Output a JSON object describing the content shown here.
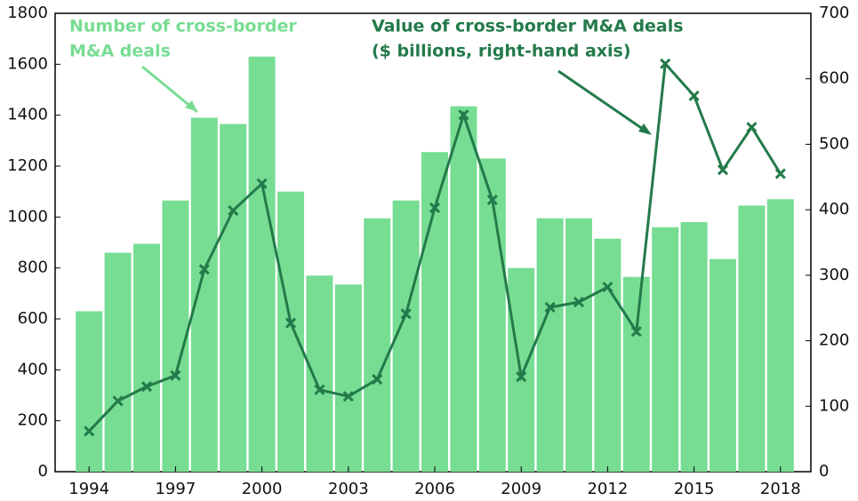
{
  "chart_data": {
    "type": "bar-line",
    "categories": [
      "1994",
      null,
      null,
      "1997",
      null,
      null,
      "2000",
      null,
      null,
      "2003",
      null,
      null,
      "2006",
      null,
      null,
      "2009",
      null,
      null,
      "2012",
      null,
      null,
      "2015",
      null,
      null,
      "2018"
    ],
    "series": [
      {
        "name": [
          "Number of cross-border",
          "M&A deals"
        ],
        "type": "bar",
        "color": "#77dd93",
        "values": [
          630,
          860,
          895,
          1065,
          1390,
          1365,
          1630,
          1100,
          770,
          735,
          995,
          1065,
          1255,
          1435,
          1230,
          800,
          995,
          995,
          915,
          765,
          960,
          980,
          835,
          1045,
          1070
        ]
      },
      {
        "name": [
          "Value of cross-border M&A deals",
          "($ billions, right-hand axis)"
        ],
        "type": "line",
        "axis": "y2",
        "color": "#237a4a",
        "values": [
          62,
          108,
          130,
          147,
          309,
          399,
          440,
          227,
          125,
          115,
          141,
          241,
          403,
          545,
          415,
          145,
          251,
          259,
          282,
          214,
          623,
          574,
          461,
          526,
          455
        ]
      }
    ],
    "ylim": [
      0,
      1800
    ],
    "yticks": [
      0,
      200,
      400,
      600,
      800,
      1000,
      1200,
      1400,
      1600,
      1800
    ],
    "y2lim": [
      0,
      700
    ],
    "y2ticks": [
      0,
      100,
      200,
      300,
      400,
      500,
      600,
      700
    ]
  }
}
